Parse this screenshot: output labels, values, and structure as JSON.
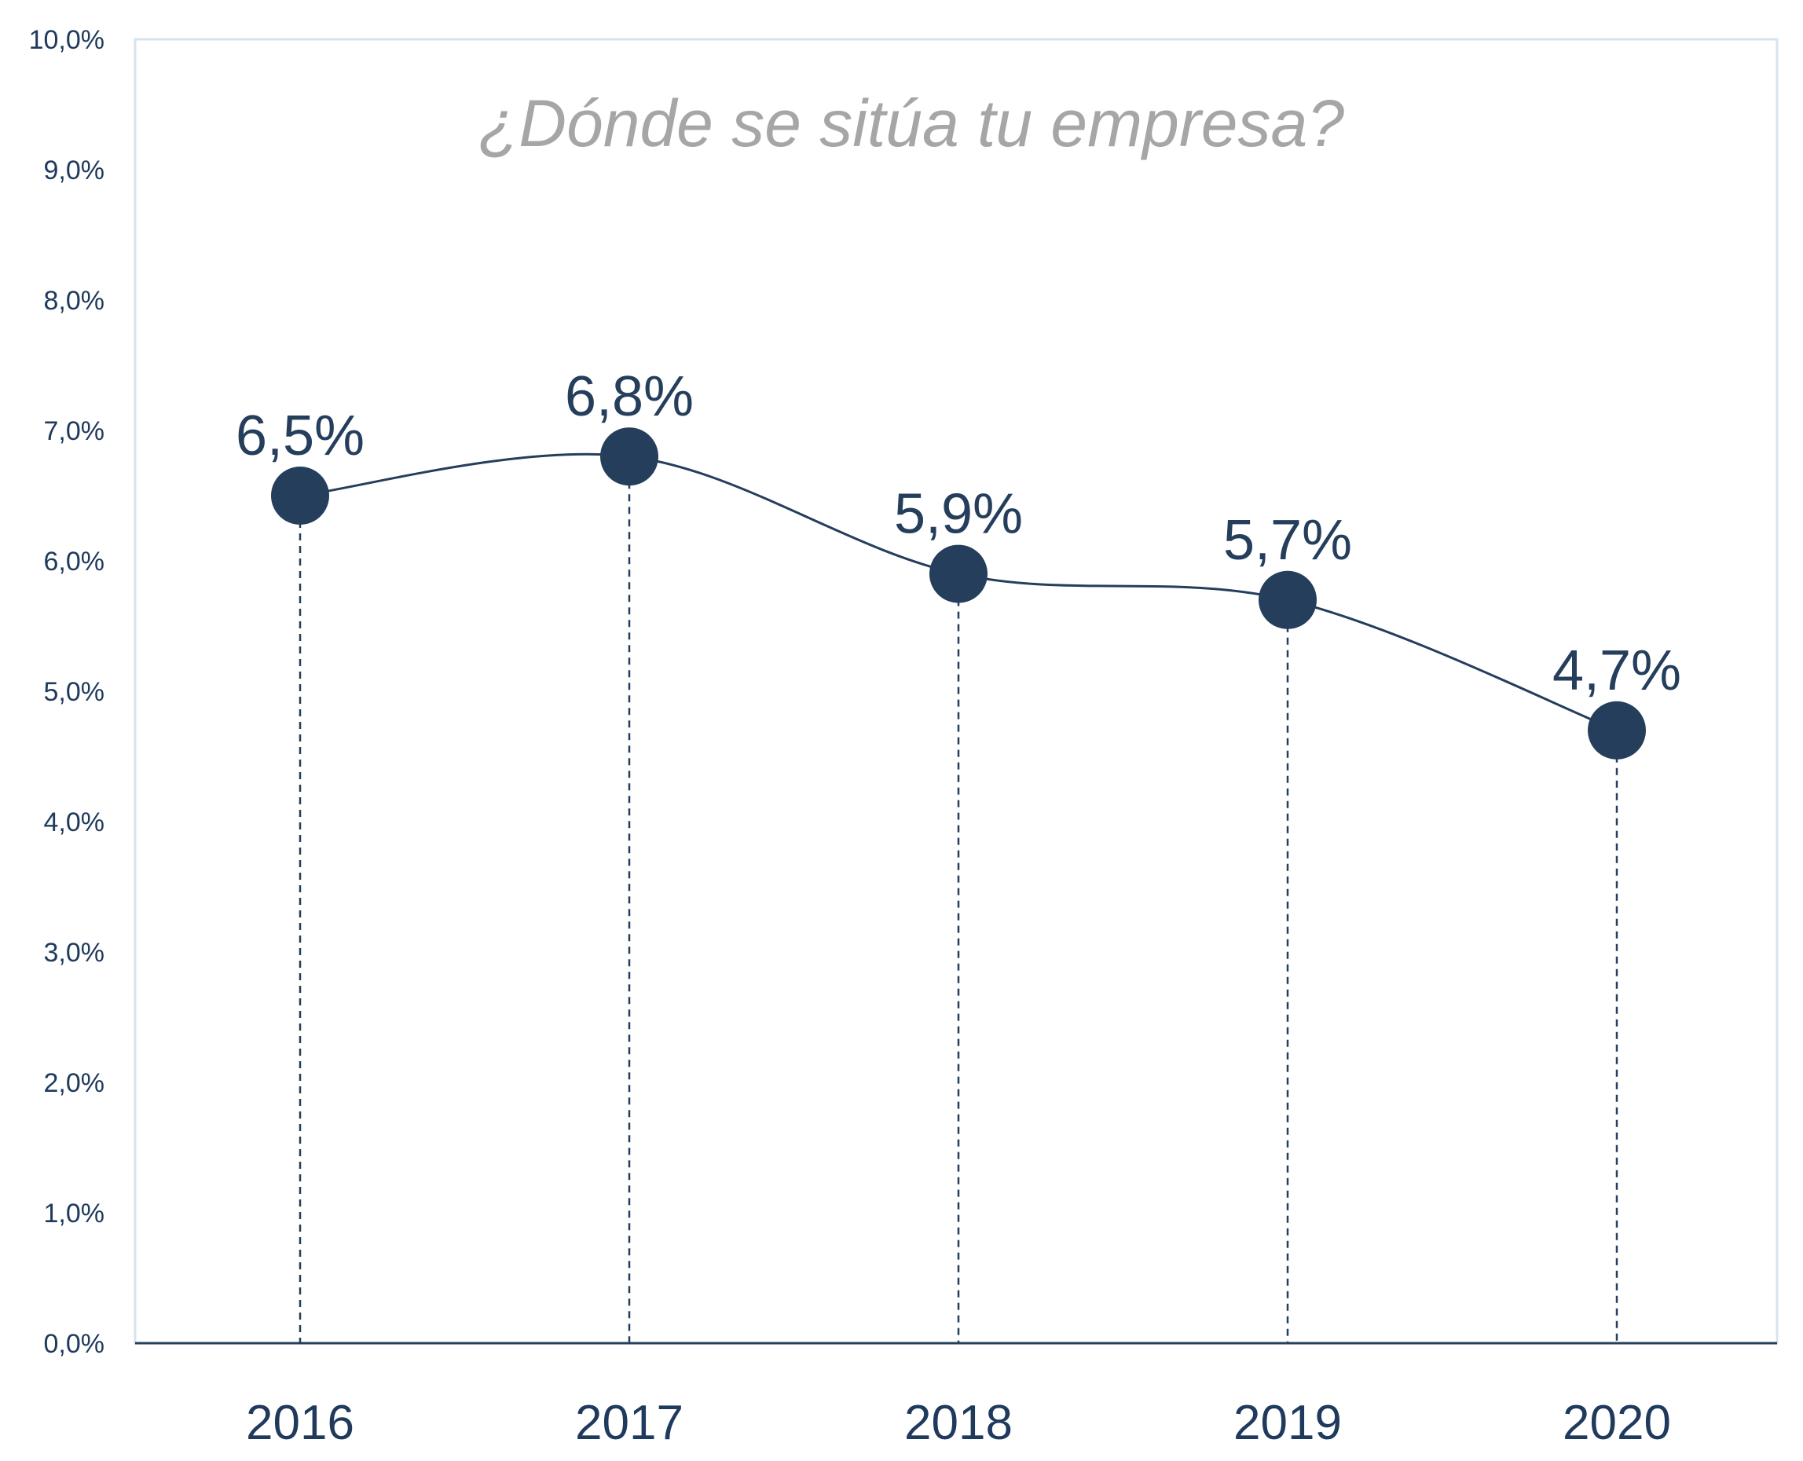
{
  "chart_data": {
    "type": "line",
    "title": "¿Dónde se sitúa tu empresa?",
    "categories": [
      "2016",
      "2017",
      "2018",
      "2019",
      "2020"
    ],
    "values": [
      6.5,
      6.8,
      5.9,
      5.7,
      4.7
    ],
    "data_labels": [
      "6,5%",
      "6,8%",
      "5,9%",
      "5,7%",
      "4,7%"
    ],
    "yticks": [
      {
        "value": 0,
        "label": "0,0%"
      },
      {
        "value": 1,
        "label": "1,0%"
      },
      {
        "value": 2,
        "label": "2,0%"
      },
      {
        "value": 3,
        "label": "3,0%"
      },
      {
        "value": 4,
        "label": "4,0%"
      },
      {
        "value": 5,
        "label": "5,0%"
      },
      {
        "value": 6,
        "label": "6,0%"
      },
      {
        "value": 7,
        "label": "7,0%"
      },
      {
        "value": 8,
        "label": "8,0%"
      },
      {
        "value": 9,
        "label": "9,0%"
      },
      {
        "value": 10,
        "label": "10,0%"
      }
    ],
    "ylim": [
      0,
      10
    ],
    "xlabel": "",
    "ylabel": "",
    "grid": false,
    "smooth": true,
    "drop_lines": true,
    "colors": {
      "series": "#243e5c",
      "title": "#a6a6a6",
      "axis": "#1f3a5c",
      "frame": "#d6e4ef"
    }
  }
}
